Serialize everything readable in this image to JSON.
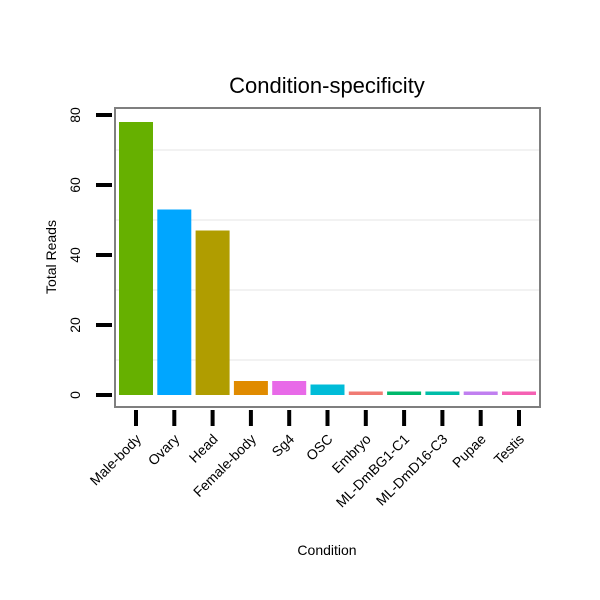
{
  "chart_data": {
    "type": "bar",
    "title": "Condition-specificity",
    "xlabel": "Condition",
    "ylabel": "Total Reads",
    "categories": [
      "Male-body",
      "Ovary",
      "Head",
      "Female-body",
      "Sg4",
      "OSC",
      "Embryo",
      "ML-DmBG1-C1",
      "ML-DmD16-C3",
      "Pupae",
      "Testis"
    ],
    "values": [
      78,
      53,
      47,
      4,
      4,
      3,
      1,
      1,
      1,
      1,
      1
    ],
    "colors": [
      "#66b000",
      "#00a6ff",
      "#b09d00",
      "#e08b00",
      "#e86ae8",
      "#00bcd8",
      "#f07b73",
      "#00b86b",
      "#00bda8",
      "#c07ff0",
      "#f561b3"
    ],
    "yticks": [
      0,
      20,
      40,
      60,
      80
    ],
    "ylim": [
      0,
      85.5
    ],
    "grid": true,
    "legend": "none"
  }
}
